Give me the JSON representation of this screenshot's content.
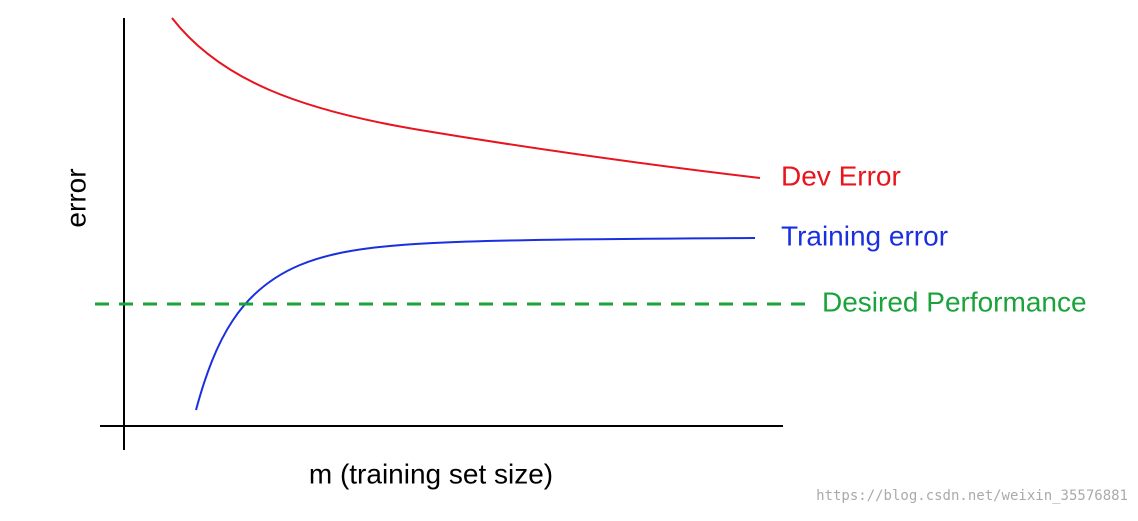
{
  "axes": {
    "y_label": "error",
    "x_label": "m (training set size)"
  },
  "curves": {
    "dev": "Dev Error",
    "training": "Training error",
    "desired": "Desired Performance"
  },
  "watermark": "https://blog.csdn.net/weixin_35576881"
}
